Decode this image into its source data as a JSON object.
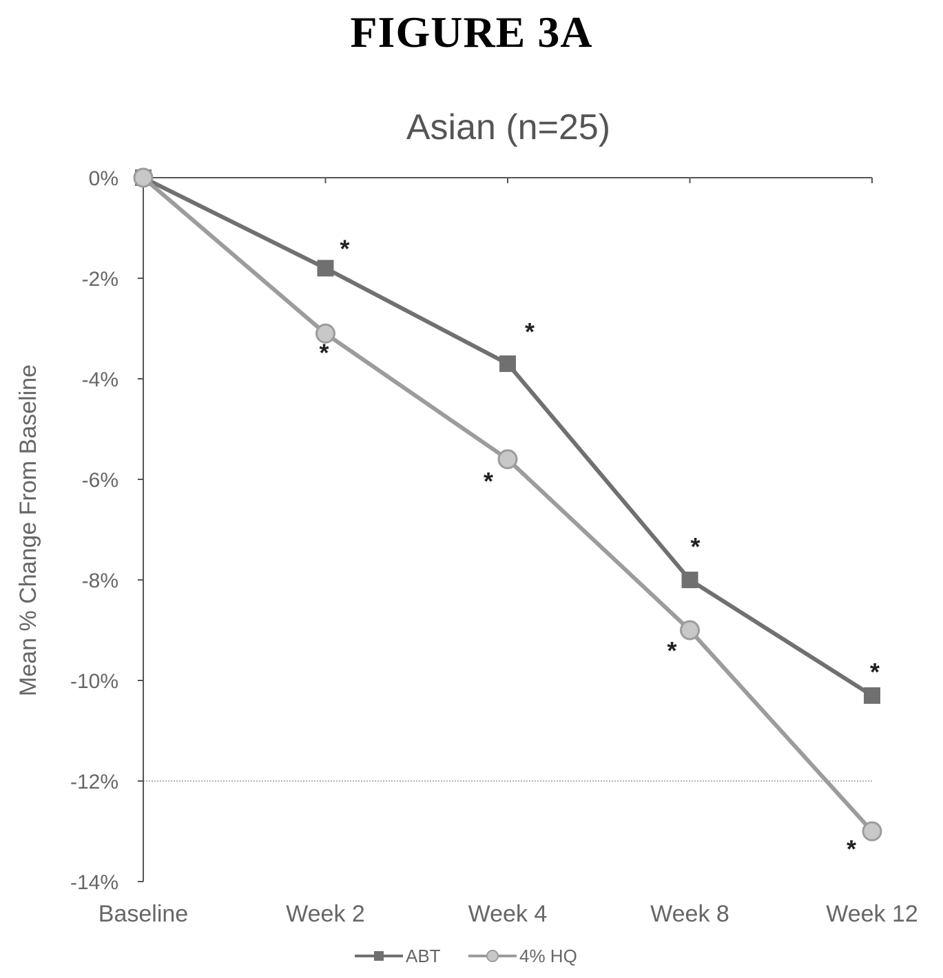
{
  "figure": {
    "label": "FIGURE 3A"
  },
  "colors": {
    "background": "#ffffff",
    "axis": "#555555",
    "gridline": "#9a9a9a",
    "text": "#666666",
    "series_abt": "#707070",
    "series_hq": "#9c9c9c",
    "asterisk": "#222222"
  },
  "chart_data": {
    "type": "line",
    "title": "Asian (n=25)",
    "xlabel": "",
    "ylabel": "Mean % Change From Baseline",
    "categories": [
      "Baseline",
      "Week 2",
      "Week 4",
      "Week 8",
      "Week 12"
    ],
    "ylim": [
      -14,
      0
    ],
    "yticks": [
      0,
      -2,
      -4,
      -6,
      -8,
      -10,
      -12,
      -14
    ],
    "ytick_labels": [
      "0%",
      "-2%",
      "-4%",
      "-6%",
      "-8%",
      "-10%",
      "-12%",
      "-14%"
    ],
    "gridlines": [
      -12
    ],
    "legend_position": "bottom-center",
    "series": [
      {
        "name": "ABT",
        "marker": "square",
        "values": [
          0,
          -1.8,
          -3.7,
          -8.0,
          -10.3
        ]
      },
      {
        "name": "4% HQ",
        "marker": "circle",
        "values": [
          0,
          -3.1,
          -5.6,
          -9.0,
          -13.0
        ]
      }
    ],
    "annotations": [
      {
        "text": "*",
        "series": "ABT",
        "category": "Week 2"
      },
      {
        "text": "*",
        "series": "ABT",
        "category": "Week 4"
      },
      {
        "text": "*",
        "series": "ABT",
        "category": "Week 8"
      },
      {
        "text": "*",
        "series": "ABT",
        "category": "Week 12"
      },
      {
        "text": "*",
        "series": "4% HQ",
        "category": "Week 2"
      },
      {
        "text": "*",
        "series": "4% HQ",
        "category": "Week 4"
      },
      {
        "text": "*",
        "series": "4% HQ",
        "category": "Week 8"
      },
      {
        "text": "*",
        "series": "4% HQ",
        "category": "Week 12"
      }
    ]
  }
}
